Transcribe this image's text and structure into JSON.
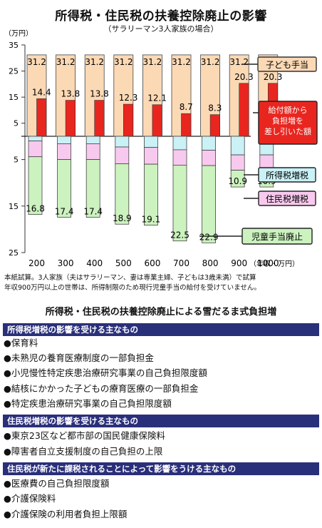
{
  "title": "所得税・住民税の扶養控除廃止の影響",
  "subtitle": "（サラリーマン3人家族の場合）",
  "notes": [
    "本紙試算。3人家族（夫はサラリーマン、妻は専業主婦、子どもは3歳未満）で試算",
    "年収900万円以上の世帯は、所得制限のため現行児童手当の給付を受けていません。"
  ],
  "chart_data": {
    "type": "bar",
    "y_unit_label": "（万円）",
    "x_unit_label": "（年収・万円）",
    "categories": [
      "200",
      "300",
      "400",
      "500",
      "600",
      "700",
      "800",
      "900",
      "1000"
    ],
    "ylim_top": [
      0,
      35
    ],
    "ylim_bottom": [
      0,
      25
    ],
    "yticks_top": [
      "35",
      "25",
      "15",
      "5"
    ],
    "yticks_bottom": [
      "5",
      "15",
      "25"
    ],
    "series": [
      {
        "name": "子ども手当",
        "values": [
          31.2,
          31.2,
          31.2,
          31.2,
          31.2,
          31.2,
          31.2,
          31.2,
          31.2
        ]
      },
      {
        "name": "給付額から負担増を差し引いた額",
        "values": [
          14.4,
          13.8,
          13.8,
          12.3,
          12.1,
          8.7,
          8.3,
          20.3,
          20.3
        ]
      },
      {
        "name": "所得税増税",
        "values": [
          1.0,
          1.6,
          1.6,
          2.3,
          2.4,
          2.9,
          3.0,
          4.0,
          4.0
        ]
      },
      {
        "name": "住民税増税",
        "values": [
          3.4,
          3.4,
          3.4,
          3.6,
          3.6,
          3.3,
          3.3,
          3.3,
          3.3
        ]
      },
      {
        "name": "児童手当廃止",
        "values": [
          12.4,
          12.4,
          12.4,
          13.0,
          13.1,
          16.3,
          16.6,
          3.6,
          3.6
        ]
      }
    ],
    "bottom_labels": [
      "16.8",
      "17.4",
      "17.4",
      "18.9",
      "19.1",
      "22.5",
      "22.9",
      "10.9",
      "10.9"
    ],
    "legend_labels": {
      "kodomo": "子ども手当",
      "net": "給付額から負担増を差し引いた額",
      "shotoku": "所得税増税",
      "jumin": "住民税増税",
      "jido": "児童手当廃止"
    },
    "colors": {
      "kodomo": "#fbd9b5",
      "net": "#e8261f",
      "shotoku": "#c9f1f6",
      "jumin": "#f8c9ee",
      "jido": "#ccf2bf"
    }
  },
  "list": {
    "title": "所得税・住民税の扶養控除廃止による雪だるま式負担増",
    "sections": [
      {
        "heading": "所得税増税の影響を受ける主なもの",
        "items": [
          "●保育料",
          "●未熟児の養育医療制度の一部負担金",
          "●小児慢性特定疾患治療研究事業の自己負担限度額",
          "●結核にかかった子どもの療育医療の一部負担金",
          "●特定疾患治療研究事業の自己負担限度額"
        ]
      },
      {
        "heading": "住民税増税の影響を受ける主なもの",
        "items": [
          "●東京23区など都市部の国民健康保険料",
          "●障害者自立支援制度の自己負担の上限"
        ]
      },
      {
        "heading": "住民税が新たに課税されることによって影響をうける主なもの",
        "items": [
          "●医療費の自己負担限度額",
          "●介護保険料",
          "●介護保険の利用者負担上限額"
        ]
      }
    ]
  }
}
